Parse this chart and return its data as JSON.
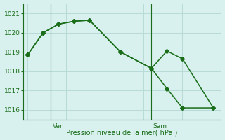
{
  "line1_x": [
    0,
    1,
    2,
    3,
    4,
    6,
    8,
    9,
    10,
    12
  ],
  "line1_y": [
    1018.85,
    1020.0,
    1020.45,
    1020.6,
    1020.65,
    1019.0,
    1018.15,
    1019.05,
    1018.65,
    1016.1
  ],
  "line2_x": [
    0,
    1,
    2,
    3,
    4,
    6,
    8,
    9,
    10,
    12
  ],
  "line2_y": [
    1018.85,
    1020.0,
    1020.45,
    1020.6,
    1020.65,
    1019.0,
    1018.15,
    1017.1,
    1016.1,
    1016.1
  ],
  "ven_x": 1.5,
  "sam_x": 8.0,
  "xlim": [
    -0.3,
    12.5
  ],
  "ylim": [
    1015.5,
    1021.5
  ],
  "yticks": [
    1016,
    1017,
    1018,
    1019,
    1020,
    1021
  ],
  "line_color": "#1a6e1a",
  "bg_color": "#d8f0ee",
  "grid_color": "#b8dbd8",
  "xlabel": "Pression niveau de la mer( hPa )",
  "markersize": 3.0,
  "linewidth": 1.1
}
